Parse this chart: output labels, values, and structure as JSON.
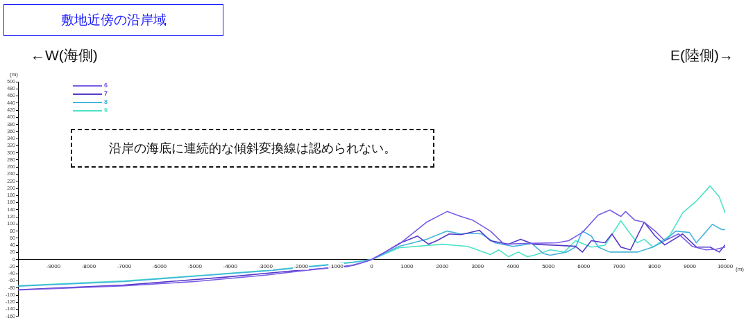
{
  "chart_data": {
    "type": "line",
    "title": "敷地近傍の沿岸域",
    "annotations": [
      "←W(海側)",
      "E(陸側)→",
      "沿岸の海底に連続的な傾斜変換線は認められない。"
    ],
    "xlabel": "(m)",
    "ylabel": "(m)",
    "legend": "top left",
    "grid": false,
    "marker": "none",
    "line_style": "solid",
    "xlim": [
      -10000,
      10000
    ],
    "xticks": [
      -9000,
      -8000,
      -7000,
      -6000,
      -5000,
      -4000,
      -3000,
      -2000,
      -1000,
      0,
      1000,
      2000,
      3000,
      4000,
      5000,
      6000,
      7000,
      8000,
      9000,
      10000
    ],
    "ylim": [
      -160,
      500
    ],
    "yticks": [
      -160,
      -140,
      -120,
      -100,
      -80,
      -60,
      -40,
      -20,
      0,
      20,
      40,
      60,
      80,
      100,
      120,
      140,
      160,
      180,
      200,
      220,
      240,
      260,
      280,
      300,
      320,
      340,
      360,
      380,
      400,
      420,
      440,
      460,
      480,
      500
    ],
    "series": [
      {
        "name": "6",
        "color": "#7a5ce6",
        "x": [
          -10000,
          -7000,
          -5000,
          -3000,
          -2000,
          -500,
          0,
          777,
          1553,
          2136,
          2524,
          2854,
          3359,
          3748,
          4300,
          5243,
          5573,
          5961,
          6408,
          6738,
          7049,
          7184,
          7437,
          7709,
          8019,
          8291,
          8679,
          9068,
          9456,
          9748,
          10000
        ],
        "values": [
          -86,
          -74,
          -62,
          -44,
          -32,
          -16,
          0,
          43,
          105,
          135,
          121,
          111,
          80,
          43,
          45,
          47,
          53,
          76,
          125,
          139,
          121,
          135,
          111,
          105,
          80,
          53,
          72,
          37,
          27,
          29,
          35
        ]
      },
      {
        "name": "7",
        "color": "#5438c8",
        "x": [
          -10000,
          -7000,
          -4200,
          -2000,
          -700,
          -300,
          0,
          330,
          777,
          1301,
          1611,
          1844,
          2194,
          2524,
          3049,
          3359,
          3874,
          4214,
          4583,
          5243,
          5767,
          5961,
          6214,
          6602,
          6796,
          7049,
          7320,
          7709,
          8019,
          8291,
          8796,
          9184,
          9573,
          9833,
          10000
        ],
        "values": [
          -85,
          -72,
          -50,
          -30,
          -20,
          -10,
          0,
          18,
          45,
          66,
          43,
          53,
          72,
          70,
          82,
          53,
          43,
          57,
          43,
          40,
          37,
          21,
          53,
          47,
          72,
          35,
          27,
          105,
          66,
          41,
          72,
          35,
          35,
          21,
          41
        ]
      },
      {
        "name": "8",
        "color": "#45b4dc",
        "x": [
          -10000,
          -7000,
          -5000,
          -3000,
          -1500,
          -500,
          0,
          777,
          1553,
          2136,
          2524,
          2854,
          3107,
          3485,
          4000,
          4272,
          4531,
          4854,
          5049,
          5515,
          5767,
          5961,
          6214,
          6408,
          6738,
          7515,
          7955,
          8291,
          8602,
          8990,
          9184,
          9640,
          9903,
          10000
        ],
        "values": [
          -75,
          -62,
          -47,
          -32,
          -18,
          -8,
          0,
          37,
          57,
          80,
          72,
          74,
          72,
          47,
          37,
          41,
          45,
          17,
          12,
          21,
          35,
          80,
          66,
          35,
          21,
          21,
          35,
          53,
          80,
          76,
          47,
          99,
          84,
          84
        ]
      },
      {
        "name": "9",
        "color": "#4ee3c6",
        "x": [
          -10000,
          -7000,
          -5000,
          -3000,
          -1500,
          -500,
          0,
          777,
          2000,
          2719,
          3359,
          3600,
          3874,
          4150,
          4400,
          4600,
          5049,
          5450,
          5767,
          6214,
          6602,
          7049,
          7320,
          7515,
          7709,
          7955,
          8420,
          8796,
          9184,
          9573,
          9833,
          10000
        ],
        "values": [
          -74,
          -60,
          -46,
          -31,
          -17,
          -7,
          0,
          33,
          43,
          37,
          14,
          27,
          8,
          21,
          8,
          12,
          27,
          21,
          53,
          35,
          40,
          109,
          72,
          47,
          57,
          35,
          66,
          131,
          164,
          207,
          176,
          131
        ]
      }
    ]
  }
}
